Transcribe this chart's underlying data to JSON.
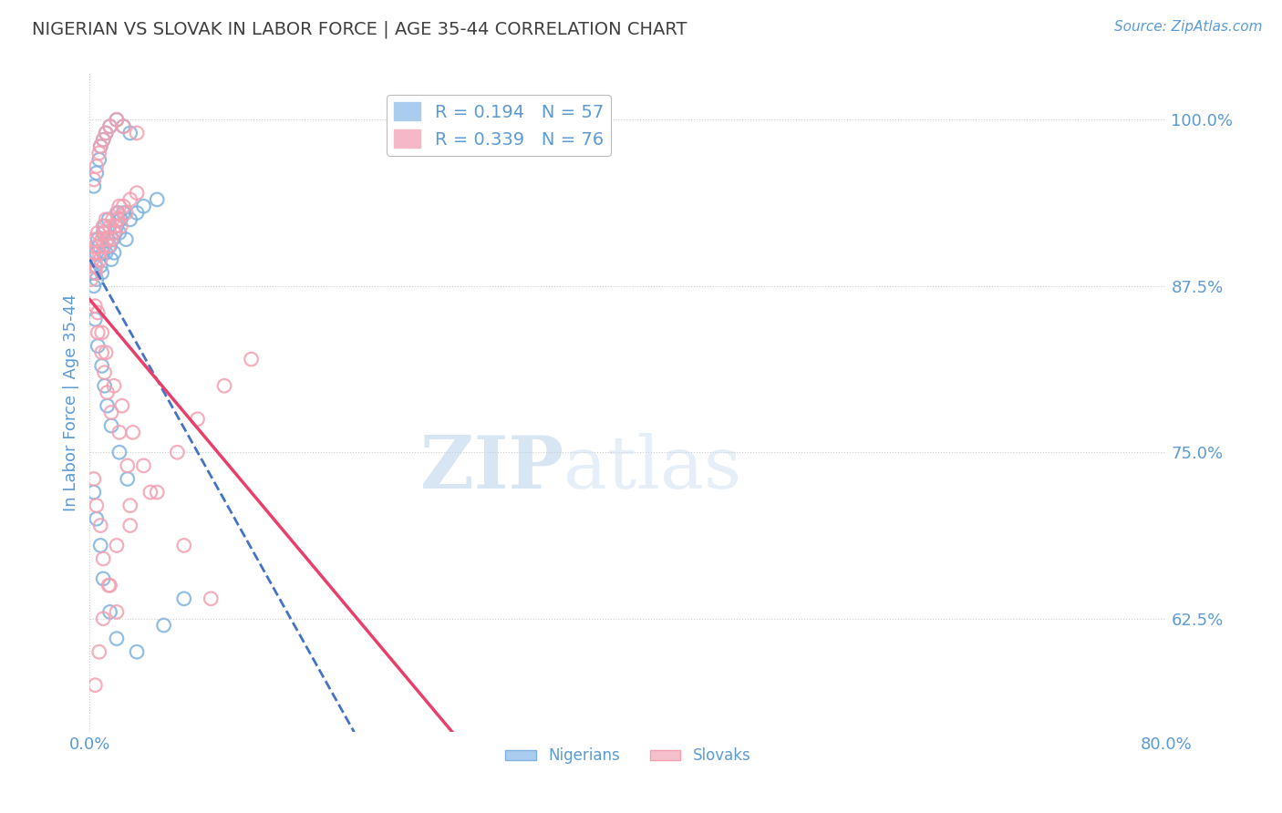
{
  "title": "NIGERIAN VS SLOVAK IN LABOR FORCE | AGE 35-44 CORRELATION CHART",
  "source_text": "Source: ZipAtlas.com",
  "ylabel": "In Labor Force | Age 35-44",
  "legend_R": [
    0.194,
    0.339
  ],
  "legend_N": [
    57,
    76
  ],
  "watermark_zip": "ZIP",
  "watermark_atlas": "atlas",
  "blue_color": "#7EB3E0",
  "pink_color": "#F4A0B0",
  "trend_blue": "#4472C4",
  "trend_pink": "#E8406A",
  "axis_label_color": "#5B9BD5",
  "title_color": "#404040",
  "background_color": "#FFFFFF",
  "grid_color": "#CCCCCC",
  "nigerians_x": [
    0.2,
    0.3,
    0.4,
    0.5,
    0.5,
    0.6,
    0.7,
    0.8,
    0.9,
    1.0,
    1.0,
    1.1,
    1.2,
    1.3,
    1.4,
    1.5,
    1.6,
    1.7,
    1.8,
    1.9,
    2.0,
    2.1,
    2.2,
    2.3,
    2.5,
    2.7,
    3.0,
    3.5,
    4.0,
    5.0,
    0.3,
    0.5,
    0.7,
    0.8,
    1.0,
    1.2,
    1.5,
    2.0,
    2.5,
    3.0,
    0.4,
    0.6,
    0.9,
    1.1,
    1.3,
    1.6,
    2.2,
    2.8,
    0.3,
    0.5,
    0.8,
    1.0,
    1.5,
    2.0,
    3.5,
    5.5,
    7.0
  ],
  "nigerians_y": [
    88.5,
    87.5,
    89.0,
    90.0,
    88.0,
    91.0,
    90.5,
    89.0,
    88.5,
    90.0,
    91.5,
    92.0,
    90.0,
    91.0,
    92.5,
    90.5,
    89.5,
    91.0,
    90.0,
    91.5,
    92.0,
    93.0,
    91.5,
    92.5,
    93.0,
    91.0,
    92.5,
    93.0,
    93.5,
    94.0,
    95.0,
    96.0,
    97.0,
    98.0,
    98.5,
    99.0,
    99.5,
    100.0,
    99.5,
    99.0,
    85.0,
    83.0,
    81.5,
    80.0,
    78.5,
    77.0,
    75.0,
    73.0,
    72.0,
    70.0,
    68.0,
    65.5,
    63.0,
    61.0,
    60.0,
    62.0,
    64.0
  ],
  "slovaks_x": [
    0.1,
    0.2,
    0.3,
    0.4,
    0.4,
    0.5,
    0.5,
    0.6,
    0.7,
    0.8,
    0.9,
    1.0,
    1.0,
    1.1,
    1.2,
    1.3,
    1.4,
    1.5,
    1.6,
    1.7,
    1.8,
    1.9,
    2.0,
    2.1,
    2.2,
    2.3,
    2.5,
    2.7,
    3.0,
    3.5,
    0.3,
    0.5,
    0.7,
    0.8,
    1.0,
    1.2,
    1.5,
    2.0,
    2.5,
    3.5,
    0.4,
    0.6,
    0.9,
    1.1,
    1.3,
    1.6,
    2.2,
    2.8,
    0.3,
    0.5,
    0.8,
    1.0,
    1.5,
    2.0,
    3.0,
    4.5,
    6.5,
    8.0,
    10.0,
    12.0,
    0.6,
    0.9,
    1.2,
    1.8,
    2.4,
    3.2,
    4.0,
    5.0,
    7.0,
    9.0,
    0.4,
    0.7,
    1.0,
    1.4,
    2.0,
    3.0
  ],
  "slovaks_y": [
    88.0,
    89.5,
    90.0,
    88.5,
    91.0,
    90.5,
    89.0,
    91.5,
    90.0,
    89.5,
    91.0,
    92.0,
    90.5,
    91.5,
    92.5,
    91.0,
    90.5,
    92.0,
    91.0,
    92.5,
    91.5,
    92.0,
    93.0,
    92.5,
    93.5,
    92.0,
    93.5,
    93.0,
    94.0,
    94.5,
    95.5,
    96.5,
    97.5,
    98.0,
    98.5,
    99.0,
    99.5,
    100.0,
    99.5,
    99.0,
    86.0,
    84.0,
    82.5,
    81.0,
    79.5,
    78.0,
    76.5,
    74.0,
    73.0,
    71.0,
    69.5,
    67.0,
    65.0,
    63.0,
    69.5,
    72.0,
    75.0,
    77.5,
    80.0,
    82.0,
    85.5,
    84.0,
    82.5,
    80.0,
    78.5,
    76.5,
    74.0,
    72.0,
    68.0,
    64.0,
    57.5,
    60.0,
    62.5,
    65.0,
    68.0,
    71.0
  ]
}
